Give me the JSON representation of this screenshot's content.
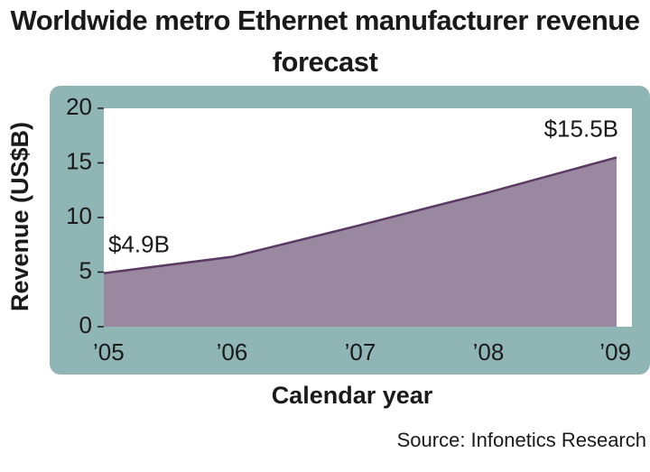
{
  "chart_data": {
    "type": "area",
    "title": "Worldwide metro Ethernet manufacturer revenue forecast",
    "categories": [
      "’05",
      "’06",
      "’07",
      "’08",
      "’09"
    ],
    "values": [
      4.9,
      6.4,
      9.3,
      12.3,
      15.5
    ],
    "value_labels": [
      "$4.9B",
      null,
      null,
      null,
      "$15.5B"
    ],
    "ylim": [
      0,
      20
    ],
    "yticks": [
      0,
      5,
      10,
      15,
      20
    ],
    "ylabel": "Revenue (US$B)",
    "xlabel": "Calendar year",
    "source": "Source: Infonetics Research",
    "color": "#9a87a0",
    "line_color": "#5a3a62",
    "grid": false
  }
}
